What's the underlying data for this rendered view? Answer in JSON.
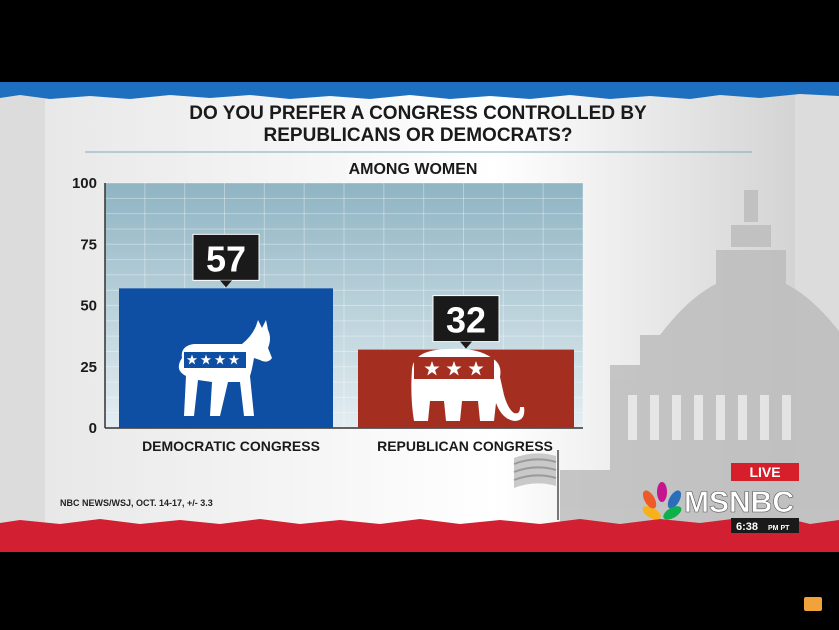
{
  "chart_data": {
    "type": "bar",
    "title": "DO YOU PREFER A CONGRESS CONTROLLED BY REPUBLICANS OR DEMOCRATS?",
    "title_lines": [
      "DO YOU PREFER A CONGRESS CONTROLLED BY",
      "REPUBLICANS OR DEMOCRATS?"
    ],
    "subtitle": "AMONG WOMEN",
    "categories": [
      "DEMOCRATIC CONGRESS",
      "REPUBLICAN CONGRESS"
    ],
    "values": [
      57,
      32
    ],
    "ylim": [
      0,
      100
    ],
    "yticks": [
      0,
      25,
      50,
      75,
      100
    ],
    "grid": true,
    "bar_colors": [
      "#0f4fa3",
      "#a42e1f"
    ],
    "bar_icons": [
      "donkey-icon",
      "elephant-icon"
    ]
  },
  "source": "NBC NEWS/WSJ, OCT. 14-17, +/- 3.3",
  "broadcast": {
    "live_label": "LIVE",
    "network": "MSNBC",
    "time": "6:38",
    "time_suffix": "PM PT"
  },
  "colors": {
    "blue_stripe": "#1f6fc0",
    "red_stripe": "#d21f32",
    "live_red": "#d71e2b"
  }
}
